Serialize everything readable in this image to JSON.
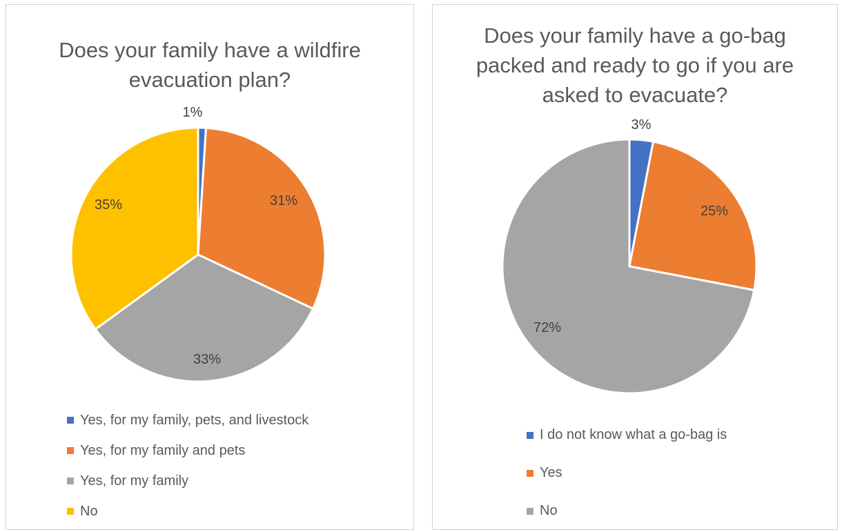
{
  "chart_data": [
    {
      "type": "pie",
      "title": "Does your family have a wildfire evacuation plan?",
      "categories": [
        "Yes, for my family, pets, and livestock",
        "Yes, for my family and pets",
        "Yes, for my family",
        "No"
      ],
      "values": [
        1,
        31,
        33,
        35
      ],
      "data_labels": [
        "1%",
        "31%",
        "33%",
        "35%"
      ],
      "colors": [
        "#4472C4",
        "#ED7D31",
        "#A5A5A5",
        "#FFC000"
      ],
      "legend_position": "bottom"
    },
    {
      "type": "pie",
      "title": "Does your family have a go-bag packed and ready to go if you are asked to evacuate?",
      "categories": [
        "I do not know what a go-bag is",
        "Yes",
        "No"
      ],
      "values": [
        3,
        25,
        72
      ],
      "data_labels": [
        "3%",
        "25%",
        "72%"
      ],
      "colors": [
        "#4472C4",
        "#ED7D31",
        "#A5A5A5"
      ],
      "legend_position": "bottom"
    }
  ]
}
